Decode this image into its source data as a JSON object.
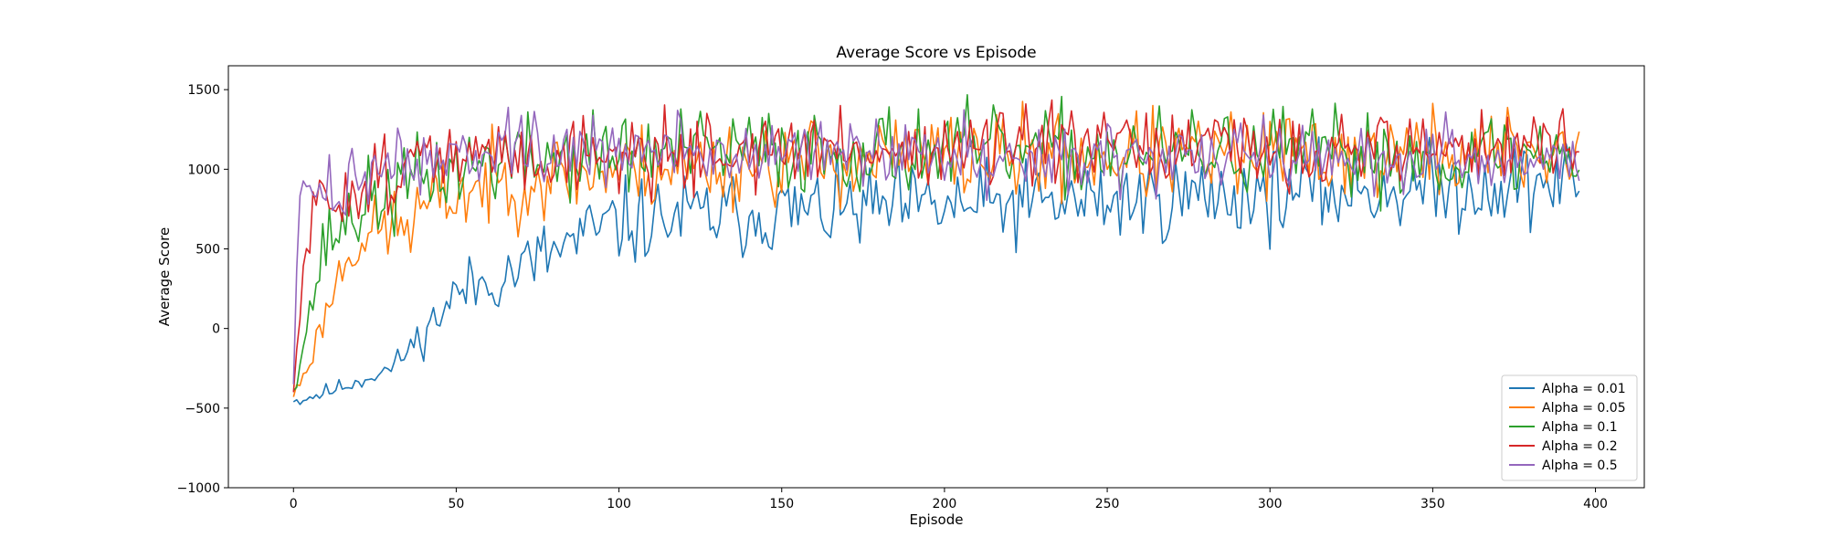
{
  "chart_data": {
    "type": "line",
    "title": "Average Score vs Episode",
    "xlabel": "Episode",
    "ylabel": "Average Score",
    "xlim": [
      -20,
      415
    ],
    "ylim": [
      -1000,
      1650
    ],
    "xticks": [
      0,
      50,
      100,
      150,
      200,
      250,
      300,
      350,
      400
    ],
    "yticks": [
      -1000,
      -500,
      0,
      500,
      1000,
      1500
    ],
    "grid": false,
    "legend_position": "lower-right",
    "x_start": 0,
    "x_end": 395,
    "series": [
      {
        "name": "Alpha = 0.01",
        "color": "#1f77b4",
        "anchors": [
          [
            0,
            -460
          ],
          [
            10,
            -400
          ],
          [
            20,
            -330
          ],
          [
            30,
            -250
          ],
          [
            40,
            -30
          ],
          [
            50,
            220
          ],
          [
            60,
            300
          ],
          [
            70,
            380
          ],
          [
            80,
            480
          ],
          [
            90,
            580
          ],
          [
            100,
            660
          ],
          [
            120,
            700
          ],
          [
            150,
            730
          ],
          [
            200,
            760
          ],
          [
            250,
            800
          ],
          [
            300,
            850
          ],
          [
            350,
            880
          ],
          [
            395,
            920
          ]
        ],
        "noise": [
          [
            0,
            30
          ],
          [
            30,
            40
          ],
          [
            50,
            120
          ],
          [
            100,
            170
          ],
          [
            395,
            170
          ]
        ],
        "seed": 11
      },
      {
        "name": "Alpha = 0.05",
        "color": "#ff7f0e",
        "anchors": [
          [
            0,
            -430
          ],
          [
            5,
            -200
          ],
          [
            10,
            100
          ],
          [
            15,
            400
          ],
          [
            20,
            550
          ],
          [
            25,
            600
          ],
          [
            30,
            650
          ],
          [
            35,
            650
          ],
          [
            40,
            750
          ],
          [
            50,
            850
          ],
          [
            60,
            900
          ],
          [
            75,
            950
          ],
          [
            100,
            1000
          ],
          [
            150,
            1050
          ],
          [
            200,
            1080
          ],
          [
            250,
            1080
          ],
          [
            300,
            1080
          ],
          [
            350,
            1100
          ],
          [
            395,
            1120
          ]
        ],
        "noise": [
          [
            0,
            30
          ],
          [
            15,
            100
          ],
          [
            30,
            160
          ],
          [
            60,
            170
          ],
          [
            395,
            180
          ]
        ],
        "seed": 23
      },
      {
        "name": "Alpha = 0.1",
        "color": "#2ca02c",
        "anchors": [
          [
            0,
            -390
          ],
          [
            3,
            -100
          ],
          [
            6,
            200
          ],
          [
            10,
            550
          ],
          [
            15,
            650
          ],
          [
            20,
            750
          ],
          [
            30,
            850
          ],
          [
            40,
            950
          ],
          [
            60,
            1050
          ],
          [
            100,
            1100
          ],
          [
            150,
            1120
          ],
          [
            200,
            1120
          ],
          [
            250,
            1100
          ],
          [
            300,
            1100
          ],
          [
            350,
            1080
          ],
          [
            395,
            1100
          ]
        ],
        "noise": [
          [
            0,
            30
          ],
          [
            10,
            150
          ],
          [
            20,
            170
          ],
          [
            395,
            170
          ]
        ],
        "seed": 37
      },
      {
        "name": "Alpha = 0.2",
        "color": "#d62728",
        "anchors": [
          [
            0,
            -400
          ],
          [
            2,
            100
          ],
          [
            4,
            500
          ],
          [
            6,
            700
          ],
          [
            10,
            800
          ],
          [
            20,
            900
          ],
          [
            30,
            1000
          ],
          [
            40,
            1050
          ],
          [
            60,
            1080
          ],
          [
            100,
            1100
          ],
          [
            150,
            1120
          ],
          [
            200,
            1120
          ],
          [
            250,
            1130
          ],
          [
            300,
            1120
          ],
          [
            350,
            1140
          ],
          [
            395,
            1150
          ]
        ],
        "noise": [
          [
            0,
            40
          ],
          [
            5,
            130
          ],
          [
            20,
            150
          ],
          [
            395,
            150
          ]
        ],
        "seed": 51
      },
      {
        "name": "Alpha = 0.5",
        "color": "#9467bd",
        "anchors": [
          [
            0,
            -350
          ],
          [
            1,
            450
          ],
          [
            2,
            780
          ],
          [
            5,
            830
          ],
          [
            10,
            850
          ],
          [
            20,
            950
          ],
          [
            30,
            1050
          ],
          [
            50,
            1100
          ],
          [
            100,
            1110
          ],
          [
            150,
            1100
          ],
          [
            200,
            1100
          ],
          [
            250,
            1080
          ],
          [
            300,
            1080
          ],
          [
            350,
            1070
          ],
          [
            395,
            1050
          ]
        ],
        "noise": [
          [
            0,
            40
          ],
          [
            5,
            120
          ],
          [
            20,
            140
          ],
          [
            395,
            140
          ]
        ],
        "seed": 73
      }
    ]
  }
}
